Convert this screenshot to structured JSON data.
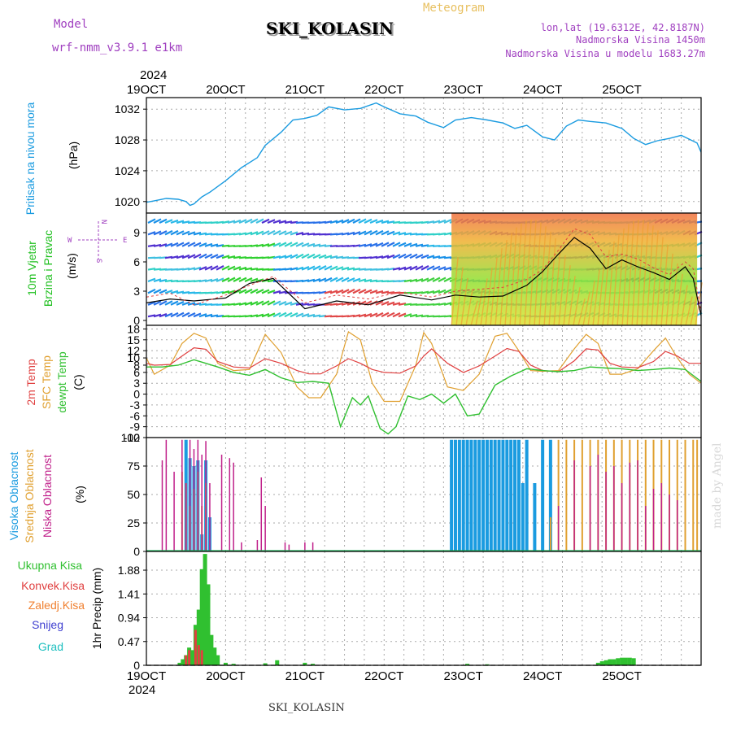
{
  "header": {
    "model_label": "Model",
    "model_value": "wrf-nmm_v3.9.1  e1km",
    "title": "SKI_KOLASIN",
    "meteogram_label": "Meteogram",
    "lonlat": "lon,lat (19.6312E, 42.8187N)",
    "altitude": "Nadmorska Visina 1450m",
    "model_altitude": "Nadmorska Visina u modelu 1683.27m",
    "footer_title": "SKI_KOLASIN",
    "credit": "made by Angel"
  },
  "colors": {
    "pressure": "#1a9be0",
    "temp": "#e04040",
    "sfc": "#e0a030",
    "dewpt": "#30c030",
    "high_cloud": "#1a9be0",
    "mid_cloud": "#e0a030",
    "low_cloud": "#c0208a",
    "total_precip": "#30c030",
    "conv_precip": "#e04040",
    "frozen_precip": "#f08030",
    "snow": "#4040d0",
    "graupel": "#20c0c0",
    "wind_label": "#20c020",
    "compass": "#a040c0"
  },
  "time_axis": {
    "year": "2024",
    "ticks": [
      "19OCT",
      "20OCT",
      "21OCT",
      "22OCT",
      "23OCT",
      "24OCT",
      "25OCT"
    ]
  },
  "chart_data": [
    {
      "type": "line",
      "name": "pressure",
      "ylabel": "Pritisak na nivou mora",
      "unit": "(hPa)",
      "yticks": [
        "1020",
        "1024",
        "1028",
        "1032"
      ],
      "ylim": [
        1018.5,
        1033.5
      ],
      "x": [
        0,
        0.1,
        0.25,
        0.4,
        0.5,
        0.55,
        0.6,
        0.7,
        0.8,
        1.0,
        1.2,
        1.4,
        1.5,
        1.7,
        1.85,
        2.0,
        2.15,
        2.3,
        2.5,
        2.7,
        2.9,
        3.0,
        3.2,
        3.4,
        3.55,
        3.75,
        3.9,
        4.1,
        4.3,
        4.5,
        4.65,
        4.8,
        5.0,
        5.15,
        5.3,
        5.45,
        5.6,
        5.8,
        6.0,
        6.15,
        6.3,
        6.45,
        6.6,
        6.75,
        6.85,
        6.95,
        7.0
      ],
      "values": [
        1019.9,
        1020.1,
        1020.4,
        1020.3,
        1020.0,
        1019.5,
        1019.7,
        1020.6,
        1021.2,
        1022.7,
        1024.4,
        1025.7,
        1027.3,
        1029.0,
        1030.6,
        1030.8,
        1031.2,
        1032.3,
        1031.9,
        1032.1,
        1032.8,
        1032.3,
        1031.4,
        1031.1,
        1030.3,
        1029.6,
        1030.6,
        1030.9,
        1030.6,
        1030.2,
        1029.5,
        1029.9,
        1028.4,
        1028.0,
        1029.8,
        1030.6,
        1030.4,
        1030.2,
        1029.5,
        1028.2,
        1027.4,
        1027.9,
        1028.2,
        1028.6,
        1028.1,
        1027.6,
        1026.4
      ]
    },
    {
      "type": "line",
      "name": "wind",
      "ylabel": "10m Vjetar",
      "ylabel2": "Brzina i Pravac",
      "unit": "(m/s)",
      "compass": [
        "N",
        "S",
        "W",
        "E"
      ],
      "yticks": [
        "0",
        "3",
        "6",
        "9"
      ],
      "ylim": [
        -0.5,
        11
      ],
      "series": [
        {
          "name": "speed",
          "x": [
            0,
            0.3,
            0.6,
            1.0,
            1.3,
            1.6,
            2.0,
            2.4,
            2.8,
            3.2,
            3.6,
            3.9,
            4.2,
            4.5,
            4.8,
            5.0,
            5.2,
            5.4,
            5.6,
            5.8,
            6.0,
            6.2,
            6.4,
            6.6,
            6.8,
            6.9,
            7.0
          ],
          "values": [
            1.8,
            2.2,
            2.0,
            2.3,
            3.8,
            4.3,
            1.2,
            2.0,
            1.6,
            2.6,
            2.1,
            2.6,
            2.4,
            2.5,
            3.6,
            5.0,
            6.8,
            8.5,
            7.4,
            5.3,
            6.2,
            5.5,
            4.9,
            4.2,
            5.5,
            4.3,
            0.5
          ]
        },
        {
          "name": "gust",
          "x": [
            0,
            0.3,
            0.6,
            1.0,
            1.3,
            1.6,
            2.0,
            2.4,
            2.8,
            3.2,
            3.6,
            3.9,
            4.2,
            4.5,
            4.8,
            5.0,
            5.2,
            5.4,
            5.6,
            5.8,
            6.0,
            6.2,
            6.4,
            6.6,
            6.8,
            6.9,
            7.0
          ],
          "values": [
            2.4,
            2.8,
            1.6,
            2.6,
            3.6,
            4.5,
            1.8,
            2.6,
            2.2,
            2.9,
            2.4,
            3.0,
            3.2,
            3.4,
            4.2,
            5.2,
            7.2,
            9.4,
            8.8,
            6.5,
            6.8,
            6.3,
            5.4,
            4.7,
            6.0,
            5.3,
            0.9
          ]
        }
      ]
    },
    {
      "type": "line",
      "name": "temperature",
      "ylabels": [
        "2m Temp",
        "SFC Temp",
        "dewpt Temp"
      ],
      "unit": "(C)",
      "yticks": [
        "-12",
        "-9",
        "-6",
        "-3",
        "0",
        "3",
        "6",
        "8",
        "10",
        "12",
        "15",
        "18"
      ],
      "ylim": [
        -12,
        19
      ],
      "series": [
        {
          "name": "2m",
          "x": [
            0,
            0.1,
            0.3,
            0.45,
            0.6,
            0.75,
            0.9,
            1.1,
            1.3,
            1.5,
            1.7,
            1.9,
            2.05,
            2.2,
            2.4,
            2.55,
            2.7,
            2.85,
            3.0,
            3.2,
            3.4,
            3.5,
            3.6,
            3.8,
            4.0,
            4.2,
            4.4,
            4.55,
            4.7,
            4.85,
            5.0,
            5.2,
            5.4,
            5.55,
            5.7,
            5.85,
            6.0,
            6.2,
            6.4,
            6.55,
            6.7,
            6.85,
            7.0
          ],
          "values": [
            8.5,
            8.0,
            8.2,
            10.5,
            12.8,
            12.4,
            9.0,
            7.5,
            7.2,
            9.8,
            8.5,
            6.5,
            5.6,
            5.6,
            7.8,
            9.8,
            8.5,
            6.8,
            6.0,
            5.8,
            7.8,
            10.5,
            12.5,
            8.5,
            6.0,
            7.8,
            10.5,
            12.6,
            11.8,
            8.0,
            6.5,
            6.2,
            9.2,
            12.5,
            12.2,
            8.5,
            7.5,
            7.3,
            9.0,
            11.8,
            10.5,
            8.5,
            8.5
          ]
        },
        {
          "name": "sfc",
          "x": [
            0,
            0.1,
            0.3,
            0.45,
            0.6,
            0.75,
            0.9,
            1.1,
            1.3,
            1.5,
            1.7,
            1.9,
            2.05,
            2.2,
            2.4,
            2.55,
            2.7,
            2.85,
            3.0,
            3.2,
            3.4,
            3.5,
            3.6,
            3.8,
            4.0,
            4.2,
            4.4,
            4.55,
            4.7,
            4.85,
            5.0,
            5.2,
            5.4,
            5.55,
            5.7,
            5.85,
            6.0,
            6.2,
            6.4,
            6.55,
            6.7,
            6.85,
            7.0
          ],
          "values": [
            10.0,
            5.5,
            8.0,
            14.0,
            16.8,
            15.5,
            8.5,
            6.5,
            6.8,
            16.5,
            11.5,
            2.0,
            -1.0,
            -1.0,
            5.5,
            17.2,
            15.0,
            3.0,
            -2.0,
            -2.0,
            8.0,
            17.0,
            14.0,
            2.0,
            1.0,
            5.5,
            16.0,
            16.8,
            12.0,
            6.5,
            6.3,
            6.5,
            12.5,
            16.5,
            14.0,
            5.5,
            5.5,
            7.0,
            12.0,
            15.5,
            10.0,
            5.5,
            3.0
          ]
        },
        {
          "name": "dewpt",
          "x": [
            0,
            0.2,
            0.4,
            0.6,
            0.75,
            0.9,
            1.1,
            1.3,
            1.5,
            1.7,
            1.9,
            2.1,
            2.3,
            2.45,
            2.6,
            2.7,
            2.8,
            2.95,
            3.05,
            3.15,
            3.3,
            3.45,
            3.6,
            3.75,
            3.9,
            4.05,
            4.2,
            4.4,
            4.6,
            4.8,
            5.0,
            5.2,
            5.4,
            5.6,
            5.8,
            6.0,
            6.2,
            6.4,
            6.6,
            6.8,
            7.0
          ],
          "values": [
            7.5,
            7.5,
            8.0,
            9.5,
            8.5,
            7.5,
            6.0,
            5.2,
            6.8,
            4.5,
            3.2,
            3.5,
            3.0,
            -9.0,
            -1.0,
            -3.0,
            -0.5,
            -9.5,
            -11.0,
            -9.0,
            -0.5,
            -1.5,
            0.0,
            -2.5,
            0.0,
            -6.0,
            -5.5,
            2.5,
            5.0,
            7.0,
            6.5,
            6.2,
            6.5,
            7.5,
            7.2,
            7.0,
            6.5,
            6.8,
            7.2,
            6.8,
            3.5
          ]
        }
      ]
    },
    {
      "type": "bar",
      "name": "clouds",
      "ylabels": [
        "Visoka Oblacnost",
        "Srednja Oblacnost",
        "Niska Oblacnost"
      ],
      "unit": "(%)",
      "yticks": [
        "0",
        "25",
        "50",
        "75",
        "100"
      ],
      "ylim": [
        0,
        100
      ],
      "series": [
        {
          "name": "low",
          "x": [
            0.2,
            0.25,
            0.35,
            0.45,
            0.5,
            0.55,
            0.6,
            0.65,
            0.7,
            0.75,
            0.8,
            0.95,
            1.05,
            1.1,
            1.2,
            1.4,
            1.45,
            1.5,
            1.75,
            1.8,
            2.0,
            2.1,
            5.2,
            5.4,
            5.6,
            5.7,
            5.8,
            5.9,
            6.0,
            6.1,
            6.2,
            6.3,
            6.4,
            6.5,
            6.6,
            6.7
          ],
          "values": [
            80,
            98,
            70,
            98,
            60,
            98,
            90,
            98,
            85,
            97,
            60,
            85,
            82,
            78,
            8,
            10,
            65,
            40,
            8,
            6,
            8,
            8,
            40,
            80,
            75,
            85,
            70,
            75,
            60,
            78,
            80,
            40,
            55,
            60,
            50,
            45
          ]
        },
        {
          "name": "mid",
          "x": [
            0.45,
            0.5,
            0.55,
            0.6,
            0.65,
            0.7,
            0.75,
            5.1,
            5.2,
            5.3,
            5.4,
            5.5,
            5.6,
            5.7,
            5.8,
            5.9,
            6.0,
            6.1,
            6.2,
            6.3,
            6.4,
            6.5,
            6.6,
            6.7,
            6.8,
            6.9,
            6.95
          ],
          "values": [
            70,
            60,
            40,
            55,
            70,
            40,
            60,
            30,
            98,
            98,
            98,
            98,
            98,
            98,
            98,
            98,
            98,
            98,
            98,
            98,
            98,
            98,
            98,
            98,
            98,
            98,
            98
          ]
        },
        {
          "name": "high",
          "x": [
            0.5,
            0.55,
            0.6,
            0.65,
            0.7,
            0.75,
            0.8,
            3.85,
            3.9,
            3.95,
            4.0,
            4.05,
            4.1,
            4.15,
            4.2,
            4.25,
            4.3,
            4.35,
            4.4,
            4.45,
            4.5,
            4.55,
            4.6,
            4.65,
            4.7,
            4.75,
            4.8,
            4.9,
            5.0,
            5.1
          ],
          "values": [
            98,
            82,
            75,
            80,
            15,
            80,
            30,
            98,
            98,
            98,
            98,
            98,
            98,
            98,
            98,
            98,
            98,
            98,
            98,
            98,
            98,
            98,
            98,
            98,
            98,
            60,
            98,
            60,
            98,
            98
          ]
        }
      ]
    },
    {
      "type": "bar",
      "name": "precipitation",
      "ylabels": [
        "Ukupna Kisa",
        "Konvek.Kisa",
        "Zaledj.Kisa",
        "Snijeg",
        "Grad"
      ],
      "unit": "1hr Precip (mm)",
      "yticks": [
        "0",
        "0.47",
        "0.94",
        "1.41",
        "1.88"
      ],
      "ylim": [
        0,
        2.25
      ],
      "series": [
        {
          "name": "total",
          "x": [
            0.42,
            0.46,
            0.5,
            0.54,
            0.58,
            0.62,
            0.66,
            0.7,
            0.74,
            0.78,
            0.82,
            0.86,
            0.9,
            1.0,
            1.1,
            1.5,
            1.65,
            2.0,
            2.1,
            4.05,
            4.3,
            5.7,
            5.75,
            5.8,
            5.85,
            5.9,
            5.95,
            6.0,
            6.05,
            6.1,
            6.15
          ],
          "values": [
            0.05,
            0.12,
            0.2,
            0.35,
            0.3,
            0.8,
            1.1,
            1.9,
            2.2,
            1.6,
            0.6,
            0.35,
            0.2,
            0.05,
            0.03,
            0.04,
            0.1,
            0.05,
            0.03,
            0.03,
            0.02,
            0.05,
            0.08,
            0.1,
            0.12,
            0.12,
            0.14,
            0.15,
            0.15,
            0.15,
            0.14
          ]
        },
        {
          "name": "convective",
          "x": [
            0.5,
            0.54,
            0.62,
            0.66,
            0.7
          ],
          "values": [
            0.2,
            0.3,
            0.7,
            0.4,
            0.3
          ]
        }
      ]
    }
  ]
}
